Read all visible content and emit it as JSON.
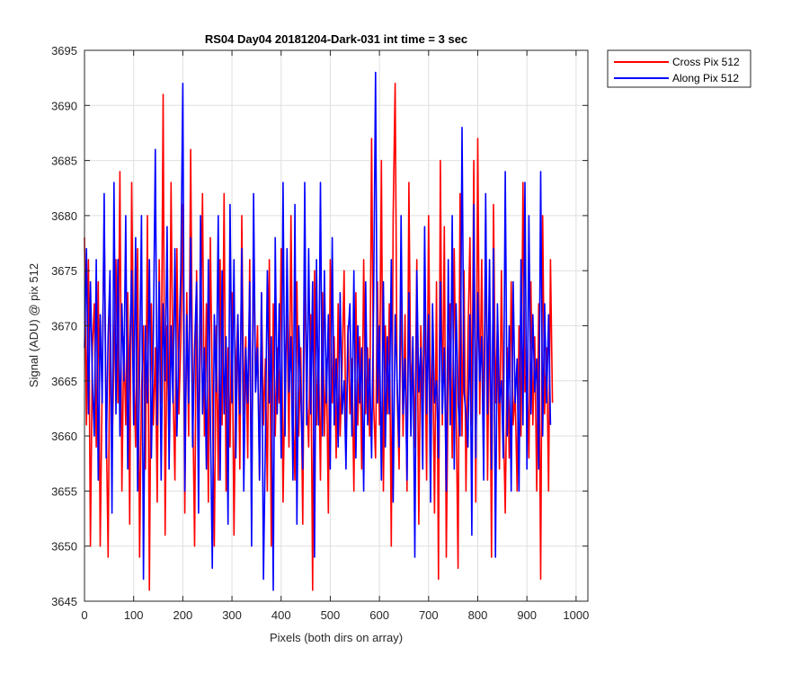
{
  "chart_data": {
    "type": "line",
    "title": "RS04 Day04 20181204-Dark-031 int time = 3 sec",
    "xlabel": "Pixels (both dirs on array)",
    "ylabel": "Signal (ADU) @ pix 512",
    "xlim": [
      0,
      1024
    ],
    "ylim": [
      3645,
      3695
    ],
    "xticks": [
      0,
      100,
      200,
      300,
      400,
      500,
      600,
      700,
      800,
      900,
      1000
    ],
    "yticks": [
      3645,
      3650,
      3655,
      3660,
      3665,
      3670,
      3675,
      3680,
      3685,
      3690,
      3695
    ],
    "grid": true,
    "legend_position": "outside-top-right",
    "series": [
      {
        "name": "Cross Pix 512",
        "color": "#ff0000",
        "x_start": 0,
        "x_step": 4,
        "values": [
          3678,
          3661,
          3676,
          3650,
          3668,
          3672,
          3659,
          3674,
          3650,
          3665,
          3680,
          3662,
          3649,
          3671,
          3658,
          3667,
          3676,
          3663,
          3684,
          3655,
          3669,
          3661,
          3673,
          3652,
          3683,
          3666,
          3659,
          3677,
          3649,
          3664,
          3670,
          3657,
          3680,
          3646,
          3672,
          3661,
          3668,
          3654,
          3676,
          3663,
          3691,
          3651,
          3670,
          3659,
          3683,
          3665,
          3656,
          3677,
          3662,
          3669,
          3681,
          3653,
          3673,
          3660,
          3686,
          3664,
          3650,
          3675,
          3658,
          3669,
          3682,
          3660,
          3672,
          3654,
          3678,
          3664,
          3650,
          3670,
          3656,
          3676,
          3661,
          3682,
          3655,
          3668,
          3659,
          3673,
          3651,
          3666,
          3671,
          3657,
          3680,
          3662,
          3669,
          3658,
          3676,
          3652,
          3679,
          3664,
          3670,
          3656,
          3673,
          3661,
          3667,
          3655,
          3676,
          3650,
          3672,
          3660,
          3668,
          3663,
          3677,
          3654,
          3666,
          3671,
          3659,
          3680,
          3662,
          3656,
          3674,
          3660,
          3668,
          3652,
          3676,
          3664,
          3659,
          3671,
          3646,
          3675,
          3661,
          3668,
          3656,
          3673,
          3660,
          3667,
          3653,
          3676,
          3663,
          3669,
          3658,
          3672,
          3660,
          3666,
          3675,
          3659,
          3670,
          3662,
          3667,
          3655,
          3673,
          3661,
          3669,
          3657,
          3676,
          3662,
          3668,
          3660,
          3687,
          3663,
          3658,
          3674,
          3661,
          3685,
          3655,
          3670,
          3662,
          3672,
          3650,
          3680,
          3692,
          3664,
          3657,
          3674,
          3660,
          3671,
          3655,
          3683,
          3663,
          3668,
          3659,
          3676,
          3652,
          3670,
          3663,
          3672,
          3656,
          3680,
          3661,
          3669,
          3653,
          3674,
          3647,
          3685,
          3661,
          3679,
          3649,
          3666,
          3672,
          3658,
          3677,
          3663,
          3648,
          3682,
          3660,
          3675,
          3655,
          3669,
          3678,
          3661,
          3685,
          3654,
          3687,
          3662,
          3676,
          3659,
          3680,
          3656,
          3673,
          3649,
          3681,
          3663,
          3670,
          3657,
          3675,
          3662,
          3653,
          3668,
          3658,
          3674,
          3661,
          3664,
          3655,
          3670,
          3660,
          3683,
          3664,
          3666,
          3658,
          3674,
          3661,
          3669,
          3655,
          3672,
          3647,
          3680,
          3662,
          3668,
          3655,
          3676,
          3663
        ]
      },
      {
        "name": "Along Pix 512",
        "color": "#0000ff",
        "x_start": 0,
        "x_step": 4,
        "values": [
          3668,
          3677,
          3662,
          3674,
          3665,
          3660,
          3676,
          3656,
          3671,
          3663,
          3682,
          3658,
          3669,
          3675,
          3653,
          3683,
          3662,
          3676,
          3660,
          3672,
          3665,
          3680,
          3657,
          3668,
          3675,
          3661,
          3678,
          3655,
          3666,
          3680,
          3647,
          3670,
          3663,
          3676,
          3658,
          3669,
          3686,
          3661,
          3674,
          3656,
          3672,
          3665,
          3679,
          3657,
          3670,
          3663,
          3677,
          3660,
          3668,
          3675,
          3692,
          3655,
          3671,
          3663,
          3678,
          3659,
          3668,
          3674,
          3653,
          3680,
          3662,
          3668,
          3657,
          3676,
          3662,
          3648,
          3671,
          3664,
          3680,
          3656,
          3675,
          3662,
          3669,
          3652,
          3681,
          3663,
          3676,
          3658,
          3671,
          3662,
          3677,
          3655,
          3668,
          3663,
          3674,
          3650,
          3682,
          3664,
          3668,
          3656,
          3673,
          3647,
          3660,
          3675,
          3663,
          3669,
          3646,
          3678,
          3662,
          3672,
          3658,
          3683,
          3660,
          3677,
          3664,
          3669,
          3656,
          3681,
          3652,
          3670,
          3664,
          3657,
          3683,
          3661,
          3677,
          3662,
          3674,
          3649,
          3676,
          3661,
          3683,
          3660,
          3675,
          3663,
          3671,
          3657,
          3678,
          3661,
          3667,
          3659,
          3673,
          3662,
          3665,
          3657,
          3669,
          3672,
          3660,
          3675,
          3658,
          3670,
          3663,
          3668,
          3655,
          3674,
          3661,
          3667,
          3658,
          3672,
          3693,
          3663,
          3670,
          3656,
          3674,
          3659,
          3669,
          3662,
          3676,
          3654,
          3671,
          3665,
          3659,
          3680,
          3662,
          3667,
          3656,
          3673,
          3660,
          3669,
          3649,
          3675,
          3664,
          3668,
          3657,
          3679,
          3662,
          3671,
          3654,
          3672,
          3663,
          3665,
          3658,
          3674,
          3662,
          3668,
          3655,
          3676,
          3661,
          3680,
          3657,
          3672,
          3663,
          3660,
          3688,
          3664,
          3662,
          3659,
          3671,
          3651,
          3681,
          3658,
          3673,
          3665,
          3669,
          3656,
          3682,
          3662,
          3676,
          3657,
          3677,
          3649,
          3672,
          3663,
          3665,
          3658,
          3684,
          3660,
          3670,
          3655,
          3674,
          3663,
          3667,
          3655,
          3676,
          3661,
          3683,
          3657,
          3680,
          3662,
          3671,
          3664,
          3667,
          3657,
          3684,
          3660,
          3672,
          3663,
          3671,
          3661
        ]
      }
    ]
  }
}
